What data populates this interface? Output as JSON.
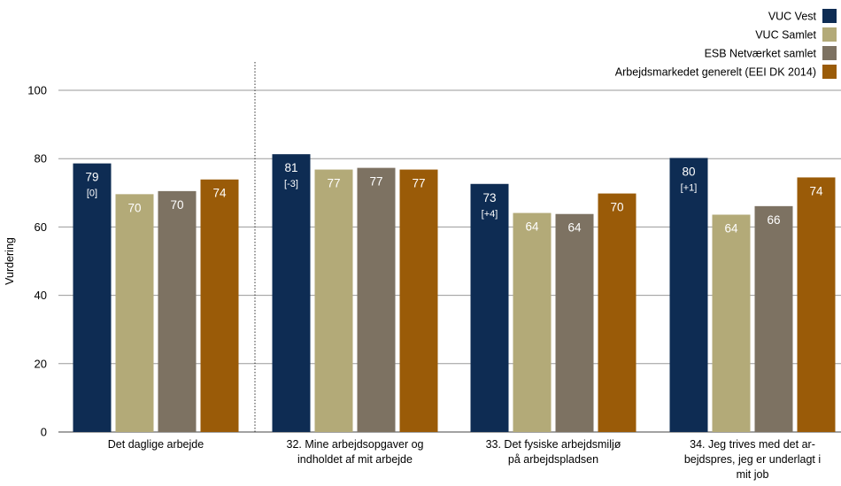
{
  "chart_data": {
    "type": "bar",
    "ylabel": "Vurdering",
    "ylim": [
      0,
      100
    ],
    "yticks": [
      0,
      20,
      40,
      60,
      80,
      100
    ],
    "grid": true,
    "legend_position": "top-right",
    "categories": [
      [
        "Det daglige arbejde"
      ],
      [
        "32. Mine arbejdsopgaver og",
        "indholdet af mit arbejde"
      ],
      [
        "33. Det fysiske arbejdsmiljø",
        "på arbejdspladsen"
      ],
      [
        "34. Jeg trives med det ar-",
        "bejdspres, jeg er underlagt i",
        "mit job"
      ]
    ],
    "series": [
      {
        "name": "VUC Vest",
        "color": "#0e2c53",
        "label_color": "#ffffff",
        "values": [
          78.6,
          81.3,
          72.6,
          80.2
        ],
        "labels": [
          "79",
          "81",
          "73",
          "80"
        ],
        "deltas": [
          "[0]",
          "[-3]",
          "[+4]",
          "[+1]"
        ]
      },
      {
        "name": "VUC Samlet",
        "color": "#b3aa78",
        "label_color": "#ffffff",
        "values": [
          69.6,
          76.8,
          64.1,
          63.6
        ],
        "labels": [
          "70",
          "77",
          "64",
          "64"
        ]
      },
      {
        "name": "ESB Netværket samlet",
        "color": "#7d7262",
        "label_color": "#ffffff",
        "values": [
          70.5,
          77.3,
          63.8,
          66.1
        ],
        "labels": [
          "70",
          "77",
          "64",
          "66"
        ]
      },
      {
        "name": "Arbejdsmarkedet generelt (EEI DK 2014)",
        "color": "#9a5b08",
        "label_color": "#ffffff",
        "values": [
          73.9,
          76.8,
          69.8,
          74.5
        ],
        "labels": [
          "74",
          "77",
          "70",
          "74"
        ]
      }
    ]
  }
}
